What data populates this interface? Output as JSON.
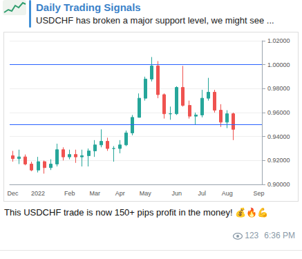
{
  "header": {
    "channel": "Daily Trading Signals",
    "preview": "USDCHF has broken a major support level, we might see ..."
  },
  "chart_data": {
    "type": "candlestick",
    "categories": [
      "Dec",
      null,
      null,
      null,
      "2022",
      null,
      null,
      null,
      null,
      "Feb",
      null,
      null,
      null,
      "Mar",
      null,
      null,
      null,
      "Apr",
      null,
      null,
      null,
      "May",
      null,
      null,
      null,
      null,
      "Jun",
      null,
      null,
      null,
      "Jul",
      null,
      null,
      null,
      "Aug",
      null,
      null,
      null,
      null,
      "Sep"
    ],
    "open": [
      0.924,
      0.9215,
      0.923,
      0.917,
      0.912,
      0.919,
      0.914,
      0.917,
      0.929,
      0.923,
      0.925,
      0.923,
      0.924,
      0.928,
      0.933,
      0.936,
      0.93,
      0.93,
      0.933,
      0.943,
      0.956,
      0.972,
      0.988,
      0.999,
      0.975,
      0.959,
      0.959,
      0.981,
      0.966,
      0.957,
      0.958,
      0.972,
      0.977,
      0.962,
      0.952,
      0.959,
      null,
      null,
      null,
      null
    ],
    "close": [
      0.9215,
      0.923,
      0.917,
      0.912,
      0.919,
      0.914,
      0.917,
      0.929,
      0.923,
      0.925,
      0.923,
      0.924,
      0.928,
      0.933,
      0.936,
      0.93,
      0.93,
      0.933,
      0.943,
      0.956,
      0.972,
      0.988,
      0.999,
      0.975,
      0.959,
      0.959,
      0.981,
      0.966,
      0.957,
      0.958,
      0.972,
      0.977,
      0.962,
      0.952,
      0.959,
      0.946,
      null,
      null,
      null,
      null
    ],
    "low": [
      0.919,
      0.917,
      0.916,
      0.911,
      0.91,
      0.909,
      0.912,
      0.915,
      0.92,
      0.921,
      0.918,
      0.915,
      0.915,
      0.923,
      0.931,
      0.928,
      0.919,
      0.926,
      0.932,
      0.941,
      0.956,
      0.97,
      0.986,
      0.972,
      0.955,
      0.954,
      0.958,
      0.965,
      0.955,
      0.95,
      0.956,
      0.97,
      0.96,
      0.948,
      0.947,
      0.937,
      null,
      null,
      null,
      null
    ],
    "high": [
      0.928,
      0.929,
      0.925,
      0.919,
      0.923,
      0.92,
      0.921,
      0.934,
      0.931,
      0.929,
      0.929,
      0.929,
      0.93,
      0.937,
      0.946,
      0.939,
      0.932,
      0.937,
      0.945,
      0.958,
      0.976,
      0.99,
      1.0064,
      1.003,
      0.976,
      0.965,
      0.982,
      0.999,
      0.97,
      0.96,
      0.979,
      0.989,
      0.979,
      0.967,
      0.962,
      0.96,
      null,
      null,
      null,
      null
    ],
    "levels": [
      0.955,
      1.0
    ],
    "ylim": [
      0.9,
      1.02
    ],
    "yticks": [
      {
        "value": 0.9,
        "label": "0.90000"
      },
      {
        "value": 0.92,
        "label": "0.92000"
      },
      {
        "value": 0.94,
        "label": "0.94000"
      },
      {
        "value": 0.96,
        "label": "0.96000"
      },
      {
        "value": 0.98,
        "label": "0.98000"
      },
      {
        "value": 1.0,
        "label": "1.00000"
      },
      {
        "value": 1.02,
        "label": "1.02000"
      }
    ],
    "grid": true
  },
  "caption": "This USDCHF trade is now 150+ pips profit in the money! 💰🔥💪",
  "views": 123,
  "time": "6:36 PM"
}
